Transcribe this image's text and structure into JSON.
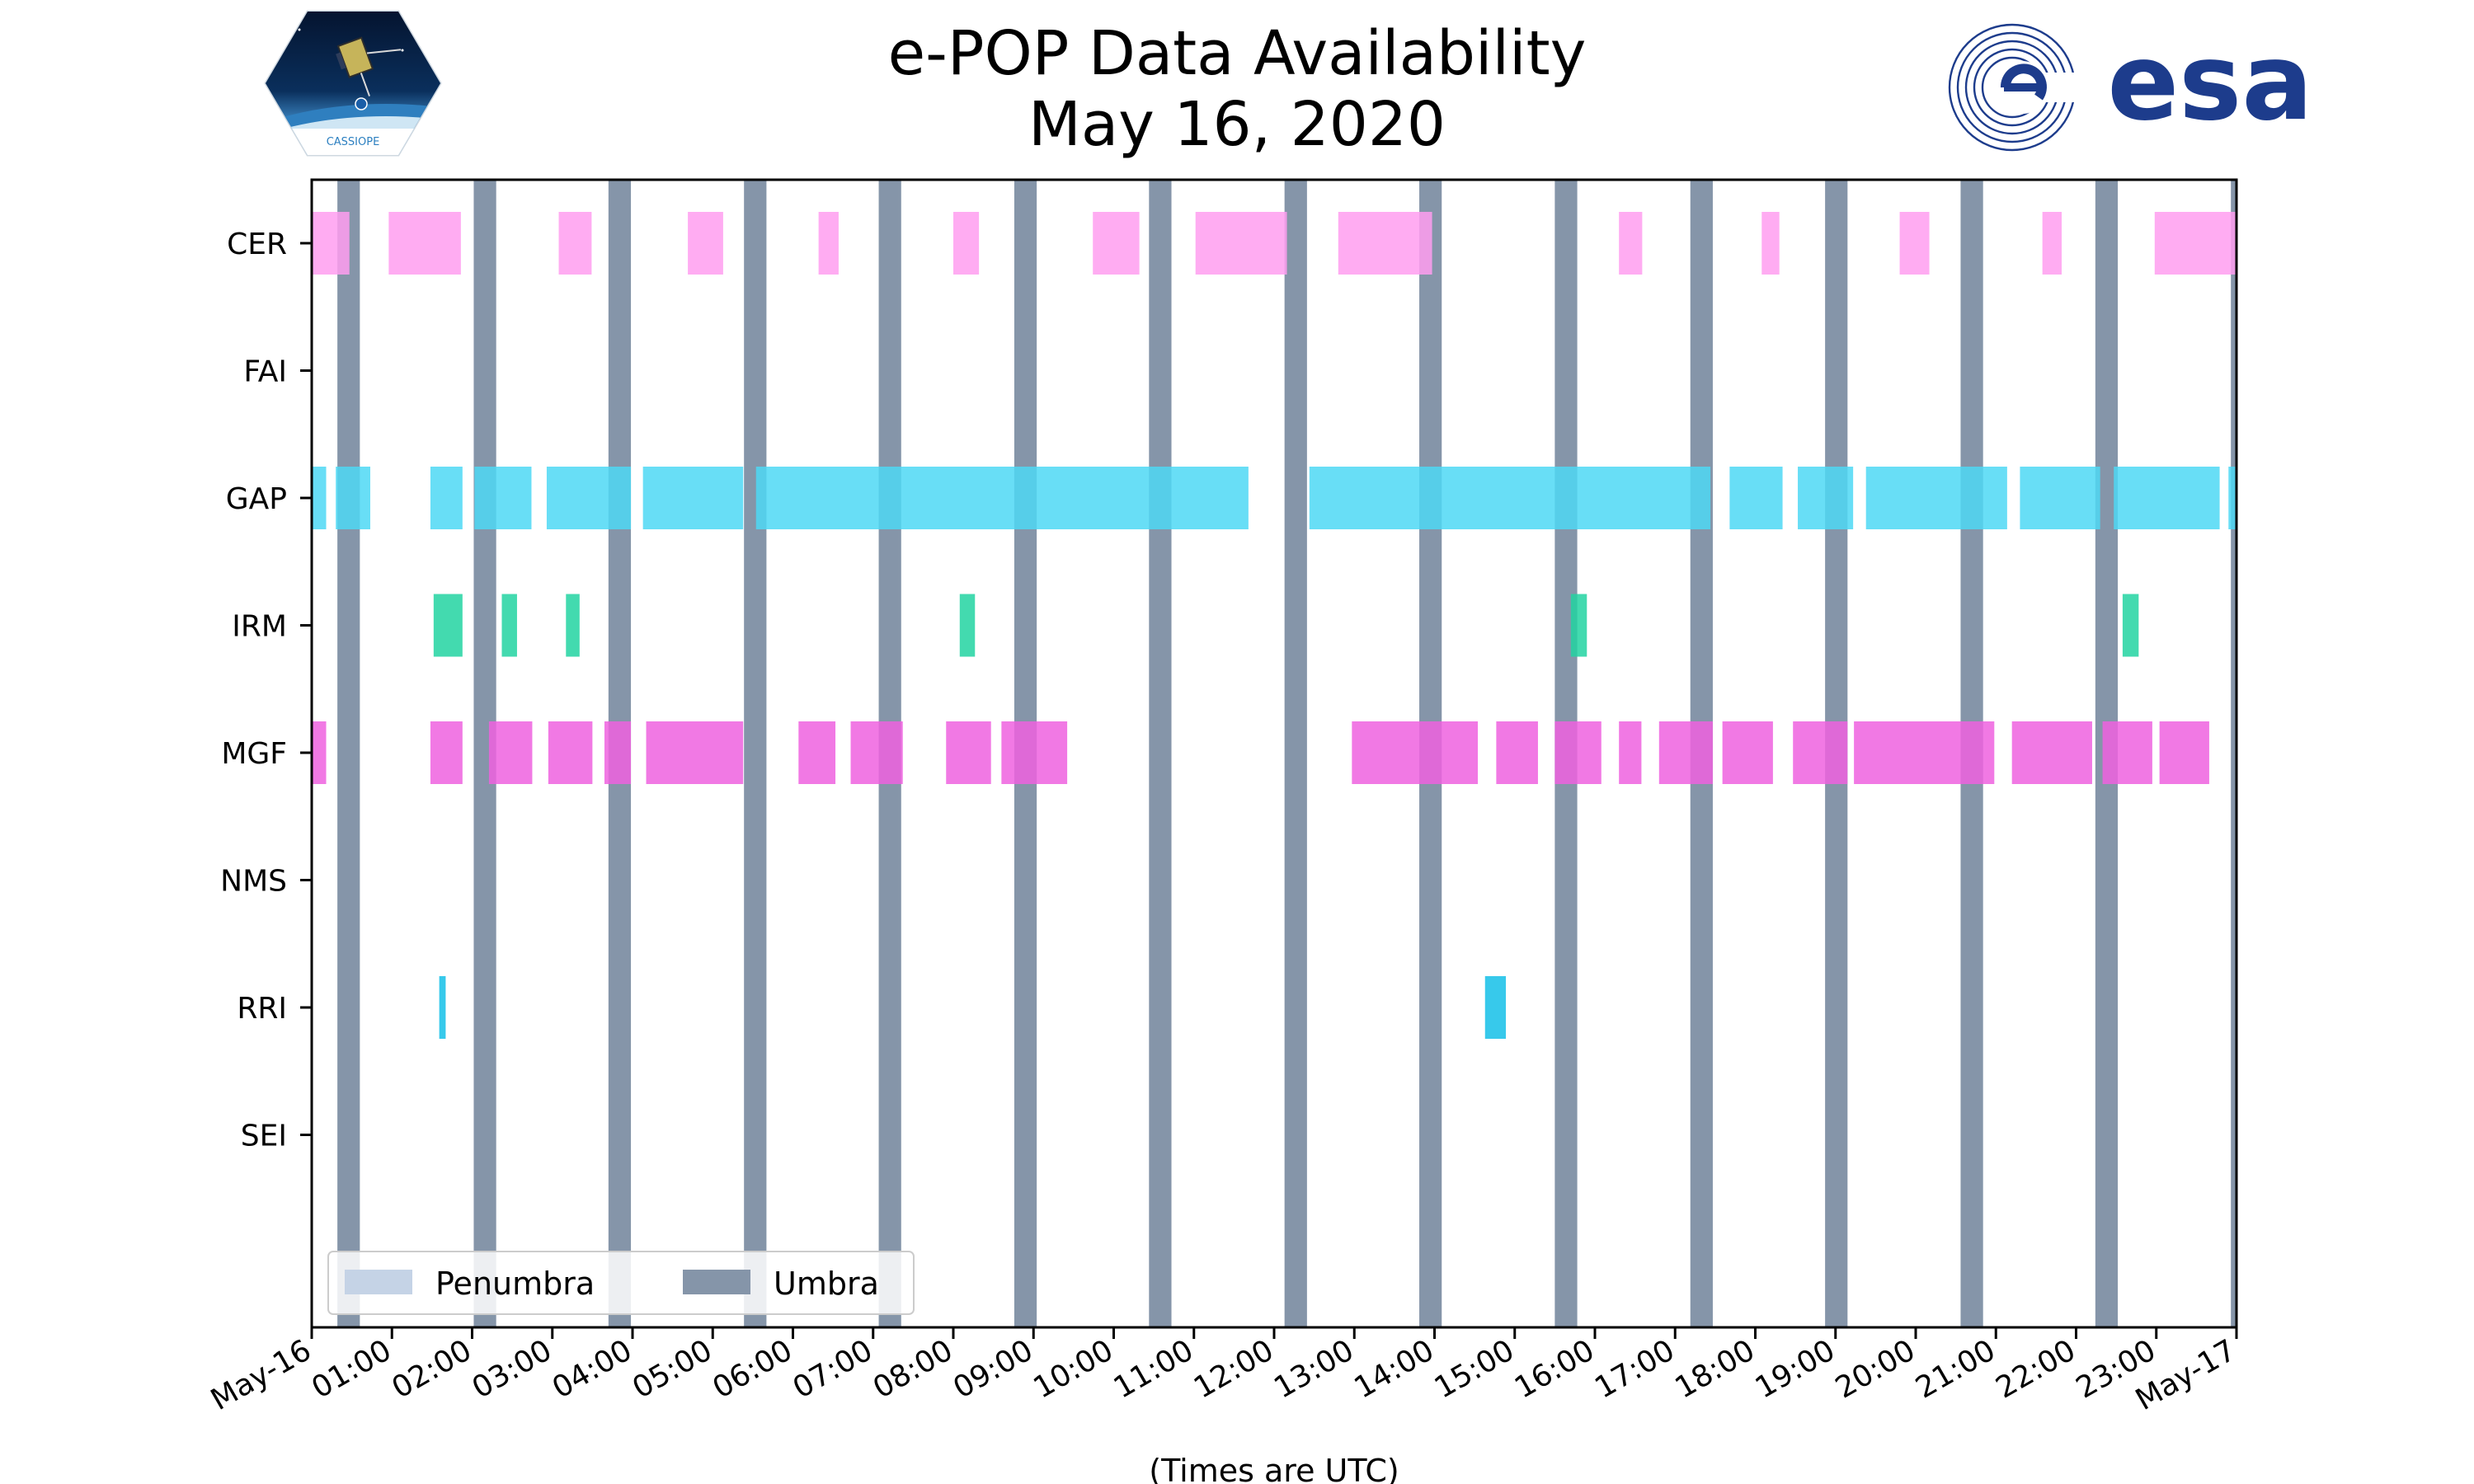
{
  "chart_data": {
    "type": "timeline",
    "title": "e-POP Data Availability",
    "subtitle": "May 16, 2020",
    "xlabel": "(Times are UTC)",
    "xlim": [
      "00:00",
      "24:00"
    ],
    "x_tick_labels": [
      "May-16",
      "01:00",
      "02:00",
      "03:00",
      "04:00",
      "05:00",
      "06:00",
      "07:00",
      "08:00",
      "09:00",
      "10:00",
      "11:00",
      "12:00",
      "13:00",
      "14:00",
      "15:00",
      "16:00",
      "17:00",
      "18:00",
      "19:00",
      "20:00",
      "21:00",
      "22:00",
      "23:00",
      "May-17"
    ],
    "legend": {
      "location": "lower-left",
      "entries": [
        {
          "label": "Penumbra",
          "color": "#c5d3e6"
        },
        {
          "label": "Umbra",
          "color": "#8595a9"
        }
      ]
    },
    "umbra_intervals": [
      [
        0.32,
        0.6
      ],
      [
        2.02,
        2.3
      ],
      [
        3.7,
        3.98
      ],
      [
        5.39,
        5.67
      ],
      [
        7.07,
        7.35
      ],
      [
        8.76,
        9.04
      ],
      [
        10.44,
        10.72
      ],
      [
        12.13,
        12.41
      ],
      [
        13.81,
        14.09
      ],
      [
        15.5,
        15.78
      ],
      [
        17.19,
        17.47
      ],
      [
        18.87,
        19.15
      ],
      [
        20.56,
        20.84
      ],
      [
        22.24,
        22.52
      ],
      [
        23.93,
        24.0
      ]
    ],
    "penumbra_intervals": [],
    "series": [
      {
        "name": "CER",
        "color": "#ff9ef0",
        "intervals": [
          [
            0.0,
            0.47
          ],
          [
            0.96,
            1.86
          ],
          [
            3.08,
            3.49
          ],
          [
            4.69,
            5.13
          ],
          [
            6.32,
            6.57
          ],
          [
            8.0,
            8.32
          ],
          [
            9.74,
            10.32
          ],
          [
            11.02,
            12.16
          ],
          [
            12.8,
            13.97
          ],
          [
            16.3,
            16.59
          ],
          [
            18.08,
            18.3
          ],
          [
            19.8,
            20.17
          ],
          [
            21.58,
            21.82
          ],
          [
            22.98,
            24.0
          ]
        ]
      },
      {
        "name": "FAI",
        "color": "#888888",
        "intervals": []
      },
      {
        "name": "GAP",
        "color": "#4dd8f5",
        "intervals": [
          [
            0.0,
            0.18
          ],
          [
            0.3,
            0.73
          ],
          [
            1.48,
            1.88
          ],
          [
            2.03,
            2.74
          ],
          [
            2.93,
            3.98
          ],
          [
            4.13,
            5.38
          ],
          [
            5.54,
            11.68
          ],
          [
            12.44,
            17.44
          ],
          [
            17.68,
            18.34
          ],
          [
            18.53,
            19.22
          ],
          [
            19.38,
            21.14
          ],
          [
            21.3,
            22.3
          ],
          [
            22.47,
            23.79
          ],
          [
            23.9,
            24.0
          ]
        ]
      },
      {
        "name": "IRM",
        "color": "#22d3a1",
        "intervals": [
          [
            1.52,
            1.88
          ],
          [
            2.37,
            2.56
          ],
          [
            3.17,
            3.34
          ],
          [
            8.08,
            8.27
          ],
          [
            15.7,
            15.9
          ],
          [
            22.58,
            22.78
          ]
        ]
      },
      {
        "name": "MGF",
        "color": "#ee62df",
        "intervals": [
          [
            0.0,
            0.18
          ],
          [
            1.48,
            1.88
          ],
          [
            2.21,
            2.75
          ],
          [
            2.95,
            3.5
          ],
          [
            3.65,
            3.98
          ],
          [
            4.17,
            5.38
          ],
          [
            6.07,
            6.53
          ],
          [
            6.72,
            7.37
          ],
          [
            7.91,
            8.47
          ],
          [
            8.6,
            9.42
          ],
          [
            12.97,
            14.54
          ],
          [
            14.77,
            15.29
          ],
          [
            15.5,
            16.08
          ],
          [
            16.3,
            16.58
          ],
          [
            16.8,
            17.47
          ],
          [
            17.59,
            18.22
          ],
          [
            18.47,
            19.15
          ],
          [
            19.23,
            20.98
          ],
          [
            21.2,
            22.2
          ],
          [
            22.33,
            22.95
          ],
          [
            23.04,
            23.66
          ]
        ]
      },
      {
        "name": "NMS",
        "color": "#888888",
        "intervals": []
      },
      {
        "name": "RRI",
        "color": "#14c0e8",
        "intervals": [
          [
            1.59,
            1.67
          ],
          [
            14.63,
            14.89
          ]
        ]
      },
      {
        "name": "SEI",
        "color": "#888888",
        "intervals": []
      }
    ],
    "grid": false
  },
  "logos": {
    "left": {
      "icon": "cassiope-logo",
      "text": "CASSIOPE"
    },
    "right": {
      "icon": "esa-logo",
      "text": "esa"
    }
  }
}
